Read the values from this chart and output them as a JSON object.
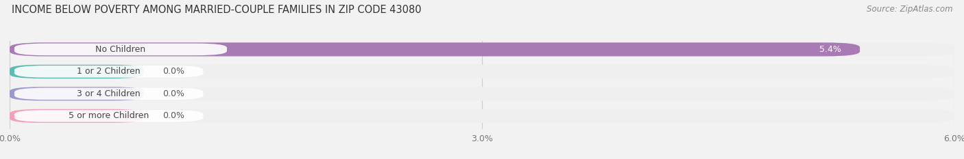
{
  "title": "INCOME BELOW POVERTY AMONG MARRIED-COUPLE FAMILIES IN ZIP CODE 43080",
  "source": "Source: ZipAtlas.com",
  "categories": [
    "No Children",
    "1 or 2 Children",
    "3 or 4 Children",
    "5 or more Children"
  ],
  "values": [
    5.4,
    0.0,
    0.0,
    0.0
  ],
  "bar_colors": [
    "#a87bb5",
    "#5bbcb0",
    "#9999cc",
    "#f4a0b8"
  ],
  "value_labels": [
    "5.4%",
    "0.0%",
    "0.0%",
    "0.0%"
  ],
  "xlim": [
    0,
    6.0
  ],
  "xticks": [
    0.0,
    3.0,
    6.0
  ],
  "xticklabels": [
    "0.0%",
    "3.0%",
    "6.0%"
  ],
  "background_color": "#f2f2f2",
  "bar_background_color": "#e4e4e4",
  "bar_background_color2": "#efefef",
  "zero_bar_width": 0.85,
  "title_fontsize": 10.5,
  "source_fontsize": 8.5,
  "label_fontsize": 9,
  "tick_fontsize": 9,
  "value_label_fontsize": 9
}
